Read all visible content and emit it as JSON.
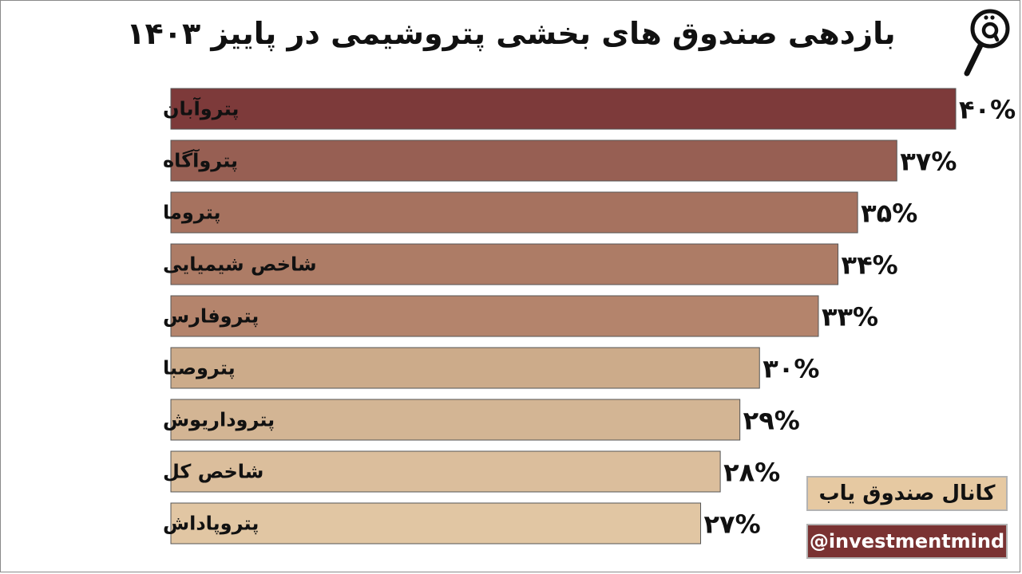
{
  "chart_data": {
    "type": "bar",
    "orientation": "horizontal",
    "title": "بازدهی صندوق های بخشی پتروشیمی در پاییز ۱۴۰۳",
    "categories": [
      "پتروآبان",
      "پتروآگاه",
      "پتروما",
      "شاخص شیمیایی",
      "پتروفارس",
      "پتروصبا",
      "پتروداریوش",
      "شاخص کل",
      "پتروپاداش"
    ],
    "values": [
      40,
      37,
      35,
      34,
      33,
      30,
      29,
      28,
      27
    ],
    "data_labels": [
      "۴۰%",
      "۳۷%",
      "۳۵%",
      "۳۴%",
      "۳۳%",
      "۳۰%",
      "۲۹%",
      "۲۸%",
      "۲۷%"
    ],
    "bar_colors": [
      "#7d3a3a",
      "#975f53",
      "#a6725f",
      "#ad7c66",
      "#b4846c",
      "#ccab8a",
      "#d3b594",
      "#dbbe9c",
      "#e1c6a3"
    ],
    "xlim": [
      0,
      40
    ],
    "grid": false,
    "legend": "none"
  },
  "brand": {
    "name": "کانال صندوق یاب",
    "handle": "@investmentmind",
    "logo_icon": "magnifier-q-icon"
  }
}
